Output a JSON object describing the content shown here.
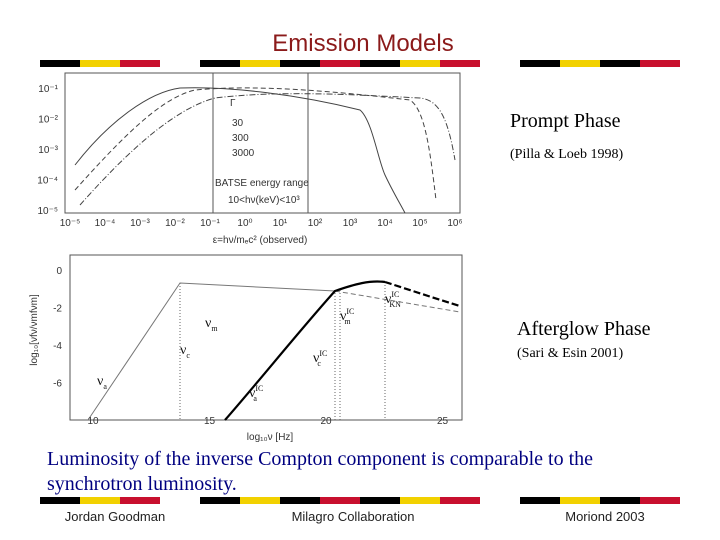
{
  "title": "Emission Models",
  "prompt_plot": {
    "y_ticks": [
      "10⁻¹",
      "10⁻²",
      "10⁻³",
      "10⁻⁴",
      "10⁻⁵"
    ],
    "x_ticks": [
      "10⁻⁵",
      "10⁻⁴",
      "10⁻³",
      "10⁻²",
      "10⁻¹",
      "10⁰",
      "10¹",
      "10²",
      "10³",
      "10⁴",
      "10⁵",
      "10⁶"
    ],
    "x_label": "ε=hν/mₑc² (observed)",
    "legend": {
      "title": "Γ",
      "entries": [
        "30",
        "300",
        "3000"
      ]
    },
    "band_label": "BATSE energy range",
    "band_range": "10<hν(keV)<10³",
    "caption": "Prompt Phase",
    "reference": "(Pilla & Loeb 1998)"
  },
  "afterglow_plot": {
    "y_ticks": [
      "0",
      "-2",
      "-4",
      "-6"
    ],
    "x_ticks": [
      "10",
      "15",
      "20",
      "25"
    ],
    "x_label": "log₁₀ν  [Hz]",
    "y_label": "log₁₀[νfν/νmfνm]",
    "annotations": [
      {
        "symbol": "ν",
        "sub": "m"
      },
      {
        "symbol": "ν",
        "sub": "c"
      },
      {
        "symbol": "ν",
        "sub": "a"
      },
      {
        "symbol": "ν",
        "sub": "m",
        "sup": "IC"
      },
      {
        "symbol": "ν",
        "sub": "c",
        "sup": "IC"
      },
      {
        "symbol": "ν",
        "sub": "a",
        "sup": "IC"
      },
      {
        "symbol": "ν",
        "sub": "KN",
        "sup": "IC"
      }
    ],
    "caption": "Afterglow Phase",
    "reference": "(Sari & Esin 2001)"
  },
  "body_text": [
    "Luminosity of the inverse Compton component is comparable to the",
    "synchrotron luminosity."
  ],
  "footer": {
    "left": "Jordan Goodman",
    "center": "Milagro Collaboration",
    "right": "Moriond 2003"
  }
}
